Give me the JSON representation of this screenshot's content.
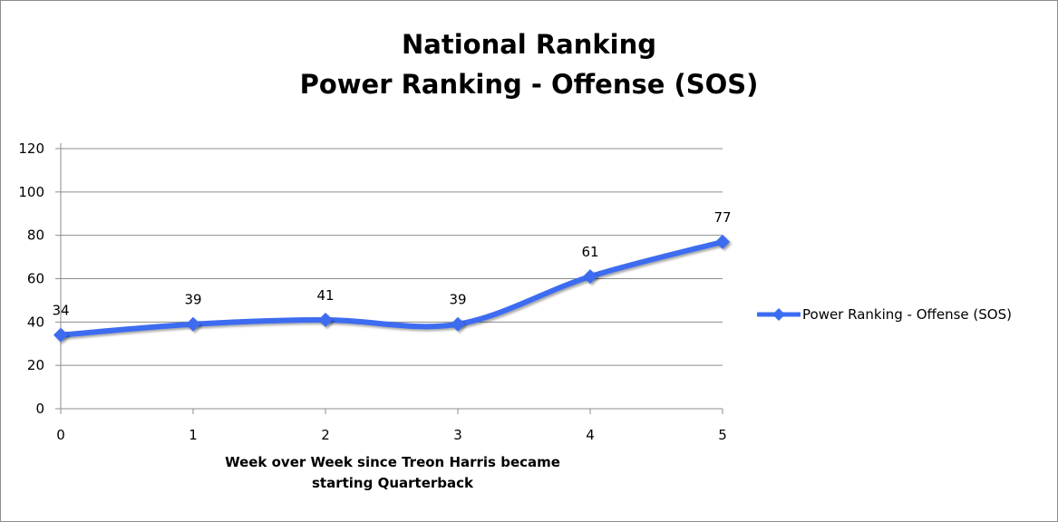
{
  "chart_data": {
    "type": "line",
    "title": "National Ranking",
    "subtitle": "Power Ranking - Offense (SOS)",
    "xlabel": "Week over Week since Treon Harris became starting Quarterback",
    "xlabel_line1": "Week over Week since Treon Harris became",
    "xlabel_line2": "starting Quarterback",
    "ylabel": "",
    "x": [
      0,
      1,
      2,
      3,
      4,
      5
    ],
    "xlim": [
      0,
      5
    ],
    "ylim": [
      0,
      120
    ],
    "yticks": [
      0,
      20,
      40,
      60,
      80,
      100,
      120
    ],
    "grid": true,
    "legend_position": "right",
    "series": [
      {
        "name": "Power Ranking - Offense (SOS)",
        "values": [
          34,
          39,
          41,
          39,
          61,
          77
        ],
        "color": "#3c6cf0",
        "marker": "diamond",
        "smooth": true,
        "data_labels": true
      }
    ]
  }
}
